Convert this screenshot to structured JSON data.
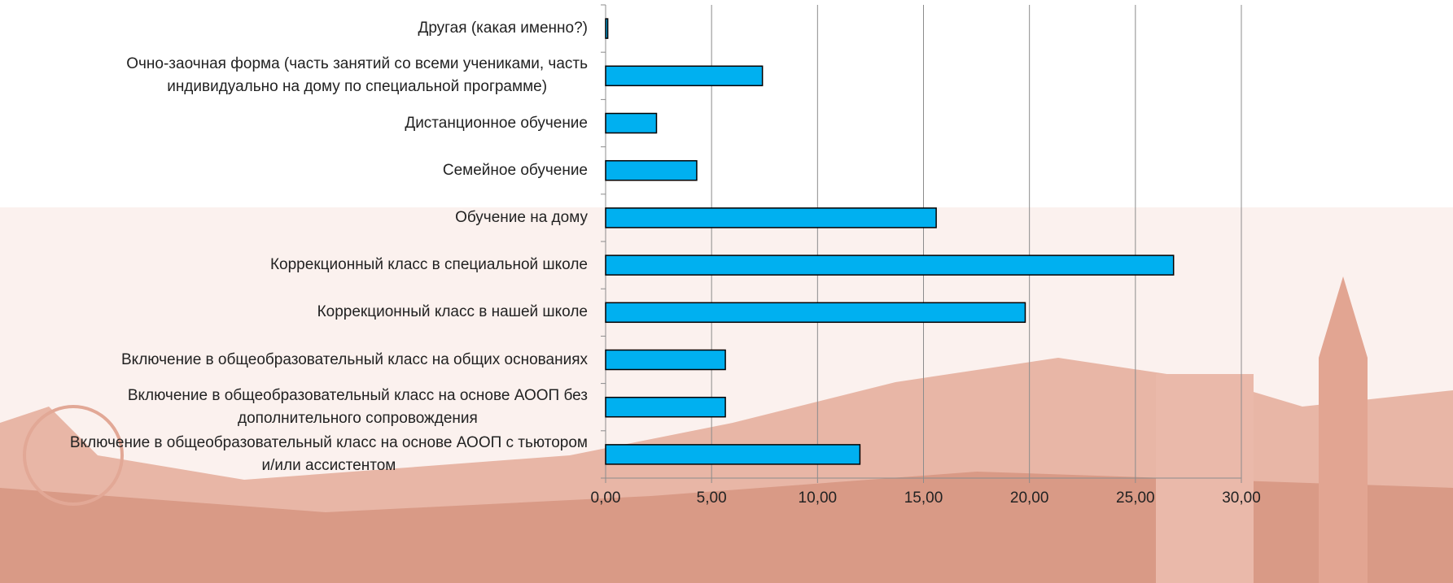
{
  "chart_data": {
    "type": "bar",
    "orientation": "horizontal",
    "categories": [
      "Другая (какая именно?)",
      "Очно-заочная форма (часть занятий со всеми учениками, часть\nиндивидуально на дому по специальной программе)",
      "Дистанционное обучение",
      "Семейное обучение",
      "Обучение на дому",
      "Коррекционный класс в специальной школе",
      "Коррекционный класс в нашей школе",
      "Включение в общеобразовательный класс на общих основаниях",
      "Включение в общеобразовательный класс на основе АООП без\nдополнительного сопровождения",
      "Включение в общеобразовательный класс на основе АООП с тьютором\nи/или ассистентом"
    ],
    "values": [
      0.1,
      7.4,
      2.4,
      4.3,
      15.6,
      26.8,
      19.8,
      5.65,
      5.65,
      12.0
    ],
    "color": "#00b0f0",
    "xlim": [
      0,
      30
    ],
    "xticks": [
      {
        "value": 0,
        "label": "0,00"
      },
      {
        "value": 5,
        "label": "5,00"
      },
      {
        "value": 10,
        "label": "10,00"
      },
      {
        "value": 15,
        "label": "15,00"
      },
      {
        "value": 20,
        "label": "20,00"
      },
      {
        "value": 25,
        "label": "25,00"
      },
      {
        "value": 30,
        "label": "30,00"
      }
    ],
    "grid": true
  }
}
